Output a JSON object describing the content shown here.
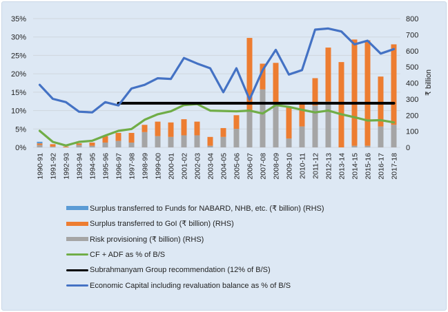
{
  "chart_data": {
    "type": "bar",
    "title": "",
    "categories": [
      "1990-91",
      "1991-92",
      "1992-93",
      "1993-94",
      "1994-95",
      "1995-96",
      "1996-97",
      "1997-98",
      "1998-99",
      "1999-00",
      "2000-01",
      "2001-02",
      "2002-03",
      "2003-04",
      "2004-05",
      "2005-06",
      "2006-07",
      "2007-08",
      "2008-09",
      "2009-10",
      "2010-11",
      "2011-12",
      "2012-13",
      "2013-14",
      "2014-15",
      "2015-16",
      "2016-17",
      "2017-18"
    ],
    "left_axis": {
      "label": "",
      "ylim": [
        0,
        35
      ],
      "ticks": [
        "0%",
        "5%",
        "10%",
        "15%",
        "20%",
        "25%",
        "30%",
        "35%"
      ],
      "tick_values": [
        0,
        5,
        10,
        15,
        20,
        25,
        30,
        35
      ]
    },
    "right_axis": {
      "label": "₹ billion",
      "ylim": [
        0,
        800
      ],
      "ticks": [
        "0",
        "100",
        "200",
        "300",
        "400",
        "500",
        "600",
        "700",
        "800"
      ],
      "tick_values": [
        0,
        100,
        200,
        300,
        400,
        500,
        600,
        700,
        800
      ]
    },
    "grid": true,
    "legend_position": "bottom",
    "bar_series": [
      {
        "name": "Risk provisioning (₹ billion) (RHS)",
        "color": "#a5a5a5",
        "axis": "right",
        "values": [
          15,
          5,
          0,
          15,
          10,
          30,
          40,
          30,
          95,
          70,
          65,
          75,
          75,
          10,
          65,
          115,
          225,
          360,
          270,
          55,
          130,
          260,
          285,
          0,
          10,
          10,
          130,
          140
        ]
      },
      {
        "name": "Surplus transferred to GoI (₹ billion) (RHS)",
        "color": "#ed7d31",
        "axis": "right",
        "values": [
          10,
          15,
          5,
          10,
          20,
          40,
          50,
          60,
          45,
          90,
          90,
          100,
          85,
          55,
          55,
          85,
          455,
          160,
          255,
          195,
          150,
          170,
          335,
          530,
          660,
          655,
          310,
          500
        ]
      },
      {
        "name": "Surplus transferred to Funds for NABARD, NHB, etc. (₹ billion) (RHS)",
        "color": "#5b9bd5",
        "axis": "right",
        "values": [
          10,
          0,
          0,
          0,
          0,
          0,
          0,
          0,
          0,
          0,
          0,
          0,
          0,
          0,
          0,
          0,
          0,
          0,
          0,
          0,
          0,
          0,
          0,
          0,
          0,
          0,
          0,
          0
        ]
      }
    ],
    "line_series": [
      {
        "name": "CF + ADF as % of B/S",
        "color": "#70ad47",
        "axis": "left",
        "values": [
          4.5,
          1.5,
          0.5,
          1.5,
          1.8,
          3.2,
          4.5,
          5.0,
          7.5,
          9.0,
          9.8,
          11.5,
          11.8,
          10.0,
          9.9,
          9.8,
          10.0,
          9.2,
          11.5,
          11.0,
          10.2,
          9.5,
          10.0,
          9.0,
          8.2,
          7.3,
          7.4,
          6.8
        ]
      },
      {
        "name": "Subrahmanyam Group recommendation (12% of B/S)",
        "color": "#000000",
        "axis": "left",
        "values": [
          null,
          null,
          null,
          null,
          null,
          null,
          12,
          12,
          12,
          12,
          12,
          12,
          12,
          12,
          12,
          12,
          12,
          12,
          12,
          12,
          12,
          12,
          12,
          12,
          12,
          12,
          12,
          12
        ]
      },
      {
        "name": "Economic Capital including revaluation balance as % of B/S",
        "color": "#4472c4",
        "axis": "left",
        "values": [
          17.0,
          13.2,
          12.3,
          9.7,
          9.5,
          12.3,
          11.4,
          16.0,
          17.0,
          18.8,
          18.6,
          24.3,
          22.8,
          21.5,
          15.0,
          21.5,
          13.0,
          21.0,
          26.5,
          19.8,
          21.0,
          32.0,
          32.3,
          31.5,
          28.0,
          29.0,
          25.5,
          26.7
        ]
      }
    ]
  },
  "legend": [
    {
      "label": "Surplus transferred to Funds for NABARD, NHB, etc. (₹ billion) (RHS)",
      "kind": "bar",
      "color": "#5b9bd5"
    },
    {
      "label": "Surplus transferred to GoI (₹ billion) (RHS)",
      "kind": "bar",
      "color": "#ed7d31"
    },
    {
      "label": "Risk provisioning (₹ billion) (RHS)",
      "kind": "bar",
      "color": "#a5a5a5"
    },
    {
      "label": "CF + ADF as % of B/S",
      "kind": "line",
      "color": "#70ad47"
    },
    {
      "label": "Subrahmanyam Group recommendation (12% of B/S)",
      "kind": "line",
      "color": "#000000"
    },
    {
      "label": "Economic Capital including revaluation balance as % of B/S",
      "kind": "line",
      "color": "#4472c4"
    }
  ]
}
